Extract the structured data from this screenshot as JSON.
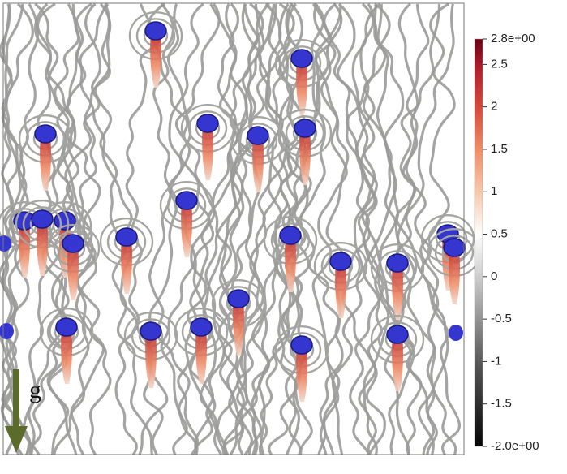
{
  "colorbar": {
    "range": [
      {
        "value": -2.0,
        "label": "-2.0e+00"
      },
      {
        "value": 2.8,
        "label": "2.8e+00"
      }
    ],
    "ticks": [
      2.5,
      2,
      1.5,
      1,
      0.5,
      0,
      -0.5,
      -1,
      -1.5
    ]
  },
  "gravity_label": "g"
}
